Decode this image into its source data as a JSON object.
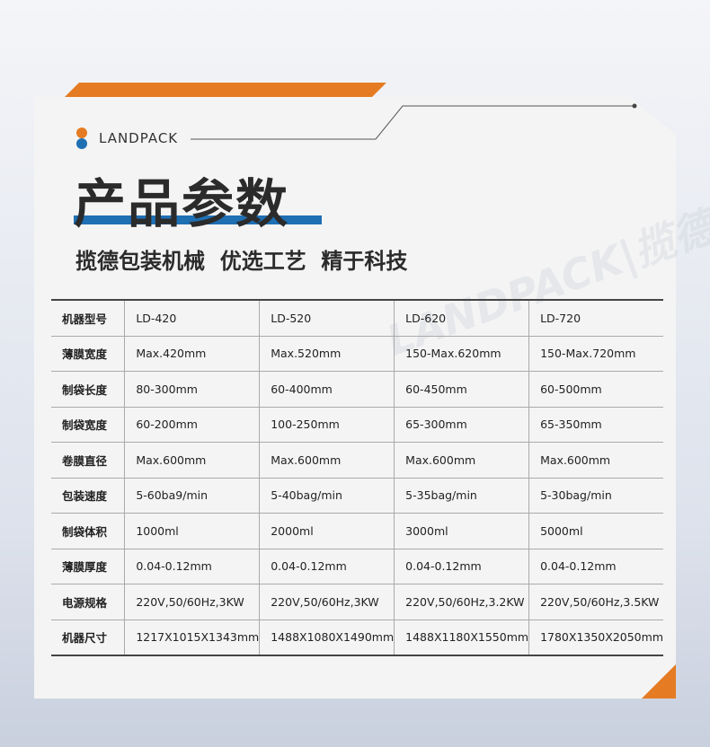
{
  "header": {
    "brand": "LANDPACK",
    "title": "产品参数",
    "subtitle": "揽德包装机械  优选工艺  精于科技",
    "watermark": "LANDPACK|揽德"
  },
  "table": {
    "rows": [
      [
        "机器型号",
        "LD-420",
        "LD-520",
        "LD-620",
        "LD-720"
      ],
      [
        "薄膜宽度",
        "Max.420mm",
        "Max.520mm",
        "150-Max.620mm",
        "150-Max.720mm"
      ],
      [
        "制袋长度",
        "80-300mm",
        "60-400mm",
        "60-450mm",
        "60-500mm"
      ],
      [
        "制袋宽度",
        "60-200mm",
        "100-250mm",
        "65-300mm",
        "65-350mm"
      ],
      [
        "卷膜直径",
        "Max.600mm",
        "Max.600mm",
        "Max.600mm",
        "Max.600mm"
      ],
      [
        "包装速度",
        "5-60ba9/min",
        "5-40bag/min",
        "5-35bag/min",
        "5-30bag/min"
      ],
      [
        "制袋体积",
        "1000ml",
        "2000ml",
        "3000ml",
        "5000ml"
      ],
      [
        "薄膜厚度",
        "0.04-0.12mm",
        "0.04-0.12mm",
        "0.04-0.12mm",
        "0.04-0.12mm"
      ],
      [
        "电源规格",
        "220V,50/60Hz,3KW",
        "220V,50/60Hz,3KW",
        "220V,50/60Hz,3.2KW",
        "220V,50/60Hz,3.5KW"
      ],
      [
        "机器尺寸",
        "1217X1015X1343mm",
        "1488X1080X1490mm",
        "1488X1180X1550mm",
        "1780X1350X2050mm"
      ]
    ]
  }
}
